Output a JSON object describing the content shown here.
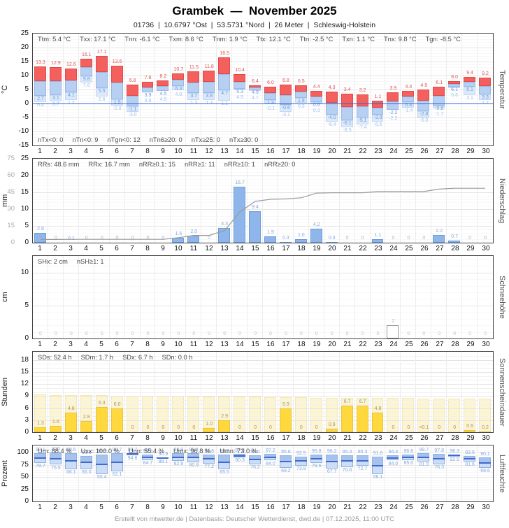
{
  "header": {
    "title": "Grambek  —  November 2025",
    "subtitle": "01736  |  10.6797 °Ost  |  53.5731 °Nord  |  26 Meter  |  Schleswig-Holstein"
  },
  "footer": "Erstellt von mtwetter.de | Datenbasis: Deutscher Wetterdienst, dwd.de | 07.12.2025, 11:00 UTC",
  "days": [
    "1",
    "2",
    "3",
    "4",
    "5",
    "6",
    "7",
    "8",
    "9",
    "10",
    "11",
    "12",
    "13",
    "14",
    "15",
    "16",
    "17",
    "18",
    "19",
    "20",
    "21",
    "22",
    "23",
    "24",
    "25",
    "26",
    "27",
    "28",
    "29",
    "30"
  ],
  "chart_data": [
    {
      "id": "temperature",
      "type": "bar",
      "label_right": "Temperatur",
      "unit_left": "°C",
      "ylim": [
        -15,
        25
      ],
      "yticks": [
        25,
        20,
        15,
        10,
        5,
        0,
        -5,
        -10,
        -15
      ],
      "stats_top": [
        "Ttm: 5.4 °C",
        "Txx: 17.1 °C",
        "Tnn: -6.1 °C",
        "Txm: 8.6 °C",
        "Tnm: 1.9 °C",
        "Ttx: 12.1 °C",
        "Ttn: -2.5 °C",
        "Txn: 1.1 °C",
        "Tnx: 9.8 °C",
        "Tgn: -8.5 °C"
      ],
      "stats_bottom": [
        "nTx<0: 0",
        "nTn<0: 9",
        "nTgn<0: 12",
        "nTn6≥20: 0",
        "nTx≥25: 0",
        "nTx≥30: 0"
      ],
      "series": [
        {
          "name": "Tmax",
          "color": "#f3605e",
          "values": [
            "13.3",
            "12.9",
            "12.6",
            "16.1",
            "17.1",
            "13.6",
            "6.8",
            "7.8",
            "8.2",
            "10.7",
            "11.5",
            "11.8",
            "16.5",
            "10.4",
            "6.4",
            "6.0",
            "6.8",
            "6.5",
            "4.4",
            "4.3",
            "3.4",
            "3.2",
            "1.1",
            "3.9",
            "4.4",
            "4.9",
            "6.1",
            "8.0",
            "9.4",
            "9.2"
          ]
        },
        {
          "name": "Tmin",
          "color": "#b7d0f2",
          "values": [
            "2.7",
            "3.1",
            "4.1",
            "9.8",
            "5.5",
            "1.5",
            "-1.1",
            "3.9",
            "4.5",
            "6.3",
            "3.7",
            "3.8",
            "4.7",
            "5.3",
            "4.9",
            "1.3",
            "-0.6",
            "1.9",
            "0.6",
            "-4.0",
            "-6.1",
            "-5.1",
            "-3.9",
            "-2.2",
            "0.4",
            "-2.8",
            "-0.8",
            "6.1",
            "6.1",
            "3.3"
          ]
        },
        {
          "name": "Tmin-Boden",
          "color": "#dce9fa",
          "values": [
            "0.4",
            "0.7",
            "1.2",
            "7.6",
            "2.6",
            "-0.8",
            "-3.0",
            "3.9",
            "4.5",
            "4.8",
            "1.3",
            "1.3",
            "1.1",
            "4.9",
            "4.7",
            "-0.1",
            "-3.1",
            "0.3",
            "0.3",
            "-6.4",
            "-8.5",
            "-7.4",
            "-6.6",
            "-2.2",
            "-1.4",
            "-5.0",
            "-1.7",
            "5.6",
            "3.1",
            "1.2"
          ]
        }
      ]
    },
    {
      "id": "precipitation",
      "type": "bar",
      "label_right": "Niederschlag",
      "unit_left": "mm",
      "ylim_daily": [
        0,
        25
      ],
      "yticks_daily": [
        25,
        20,
        15,
        10,
        5,
        0
      ],
      "ylim_cumulative": [
        0,
        75
      ],
      "yticks_cumulative": [
        75,
        60,
        45,
        30,
        15,
        0
      ],
      "stats": [
        "RRs: 48.6 mm",
        "RRx: 16.7 mm",
        "nRR≥0.1: 15",
        "nRR≥1: 11",
        "nRR≥10: 1",
        "nRR≥20: 0"
      ],
      "series": [
        {
          "name": "Tagesniederschlag",
          "color": "#8fb6ea",
          "values": [
            "2.9",
            "0",
            "0.1",
            "0",
            "0",
            "0",
            "0",
            "0",
            "0",
            "1.5",
            "2.0",
            "0",
            "4.3",
            "16.7",
            "9.4",
            "1.9",
            "0.3",
            "1.0",
            "4.2",
            "0.3",
            "0",
            "0",
            "1.1",
            "0",
            "0",
            "0",
            "2.2",
            "0.7",
            "0",
            "0"
          ]
        },
        {
          "name": "Summenlinie (kumuliert)",
          "color": "#9a9a9a",
          "note": "running sum of daily values, right-reads on gray 0–75 scale"
        }
      ]
    },
    {
      "id": "snow",
      "type": "bar",
      "label_right": "Schneehöhe",
      "unit_left": "cm",
      "ylim": [
        0,
        12.5
      ],
      "yticks": [
        10,
        5,
        0
      ],
      "stats": [
        "SHx: 2 cm",
        "nSH≥1: 1"
      ],
      "values": [
        "0",
        "0",
        "0",
        "0",
        "0",
        "0",
        "0",
        "0",
        "0",
        "0",
        "0",
        "0",
        "0",
        "0",
        "0",
        "0",
        "0",
        "0",
        "0",
        "0",
        "0",
        "0",
        "0",
        "2",
        "0",
        "0",
        "0",
        "0",
        "0",
        "0"
      ]
    },
    {
      "id": "sunshine",
      "type": "bar",
      "label_right": "Sonnenscheindauer",
      "unit_left": "Stunden",
      "ylim": [
        0,
        20
      ],
      "yticks": [
        18,
        15,
        12,
        9,
        6,
        3,
        0
      ],
      "stats": [
        "SDs: 52.4 h",
        "SDm: 1.7 h",
        "SDx: 6.7 h",
        "SDn: 0.0 h"
      ],
      "series": [
        {
          "name": "Sonnenscheindauer",
          "color": "#ffd83d",
          "values": [
            "1.3",
            "1.6",
            "4.8",
            "2.8",
            "6.3",
            "6.0",
            "0",
            "0",
            "0",
            "0",
            "0",
            "1.0",
            "2.9",
            "0",
            "0",
            "0",
            "5.9",
            "0",
            "0",
            "0.9",
            "6.7",
            "6.7",
            "4.8",
            "0",
            "0",
            "<0.1",
            "0",
            "0",
            "0.6",
            "0.2"
          ]
        },
        {
          "name": "astronomisch möglich (ca.)",
          "color": "#fdf4d0",
          "values": [
            9.4,
            9.3,
            9.3,
            9.2,
            9.2,
            9.1,
            9.1,
            9.0,
            9.0,
            9.0,
            8.9,
            8.9,
            8.8,
            8.8,
            8.8,
            8.7,
            8.7,
            8.7,
            8.6,
            8.6,
            8.6,
            8.5,
            8.5,
            8.5,
            8.5,
            8.4,
            8.4,
            8.4,
            8.4,
            8.3
          ]
        }
      ]
    },
    {
      "id": "humidity",
      "type": "range-bar",
      "label_right": "Luftfeuchte",
      "unit_left": "Prozent",
      "ylim": [
        0,
        115
      ],
      "yticks": [
        100,
        75,
        50,
        25,
        0
      ],
      "stats": [
        "Um: 88.4 %",
        "Uxx: 100.0 %",
        "Unn: 55.4 %",
        "Umx: 96.8 %",
        "Umn: 73.0 %"
      ],
      "series": [
        {
          "name": "Maximum",
          "values": [
            "99.1",
            "100",
            "99.6",
            "93.8",
            "96.9",
            "98.7",
            "99.7",
            "96.5",
            "90.9",
            "98.9",
            "99.1",
            "96.8",
            "96.2",
            "97.8",
            "95.0",
            "97.2",
            "95.6",
            "92.5",
            "95.8",
            "96.2",
            "95.4",
            "95.3",
            "91.6",
            "94.4",
            "96.6",
            "99.7",
            "97.8",
            "96.3",
            "93.5",
            "90.1"
          ]
        },
        {
          "name": "Minimum",
          "values": [
            "78.7",
            "75.5",
            "66.1",
            "66.0",
            "55.4",
            "62.1",
            "94.6",
            "84.7",
            "88.1",
            "82.9",
            "80.9",
            "77.2",
            "65.5",
            "90.3",
            "76.2",
            "84.0",
            "69.2",
            "73.8",
            "78.6",
            "67.7",
            "70.6",
            "72.7",
            "56.1",
            "84.0",
            "85.0",
            "81.9",
            "76.3",
            "92.5",
            "81.6",
            "68.6"
          ]
        }
      ]
    }
  ],
  "colors": {
    "temp_max_bar": "#f3605e",
    "temp_min_bar": "#b7d0f2",
    "temp_ground_bar": "#dce9fa",
    "temp_zero_line": "#2f62d9",
    "rain_bar": "#8fb6ea",
    "cumulative_line": "#9a9a9a",
    "sun_bar": "#ffd83d",
    "daylight_bar": "#fdf4d0",
    "humidity_bar": "#a6c3ee",
    "humidity_mean_line": "#3f6bd0"
  }
}
